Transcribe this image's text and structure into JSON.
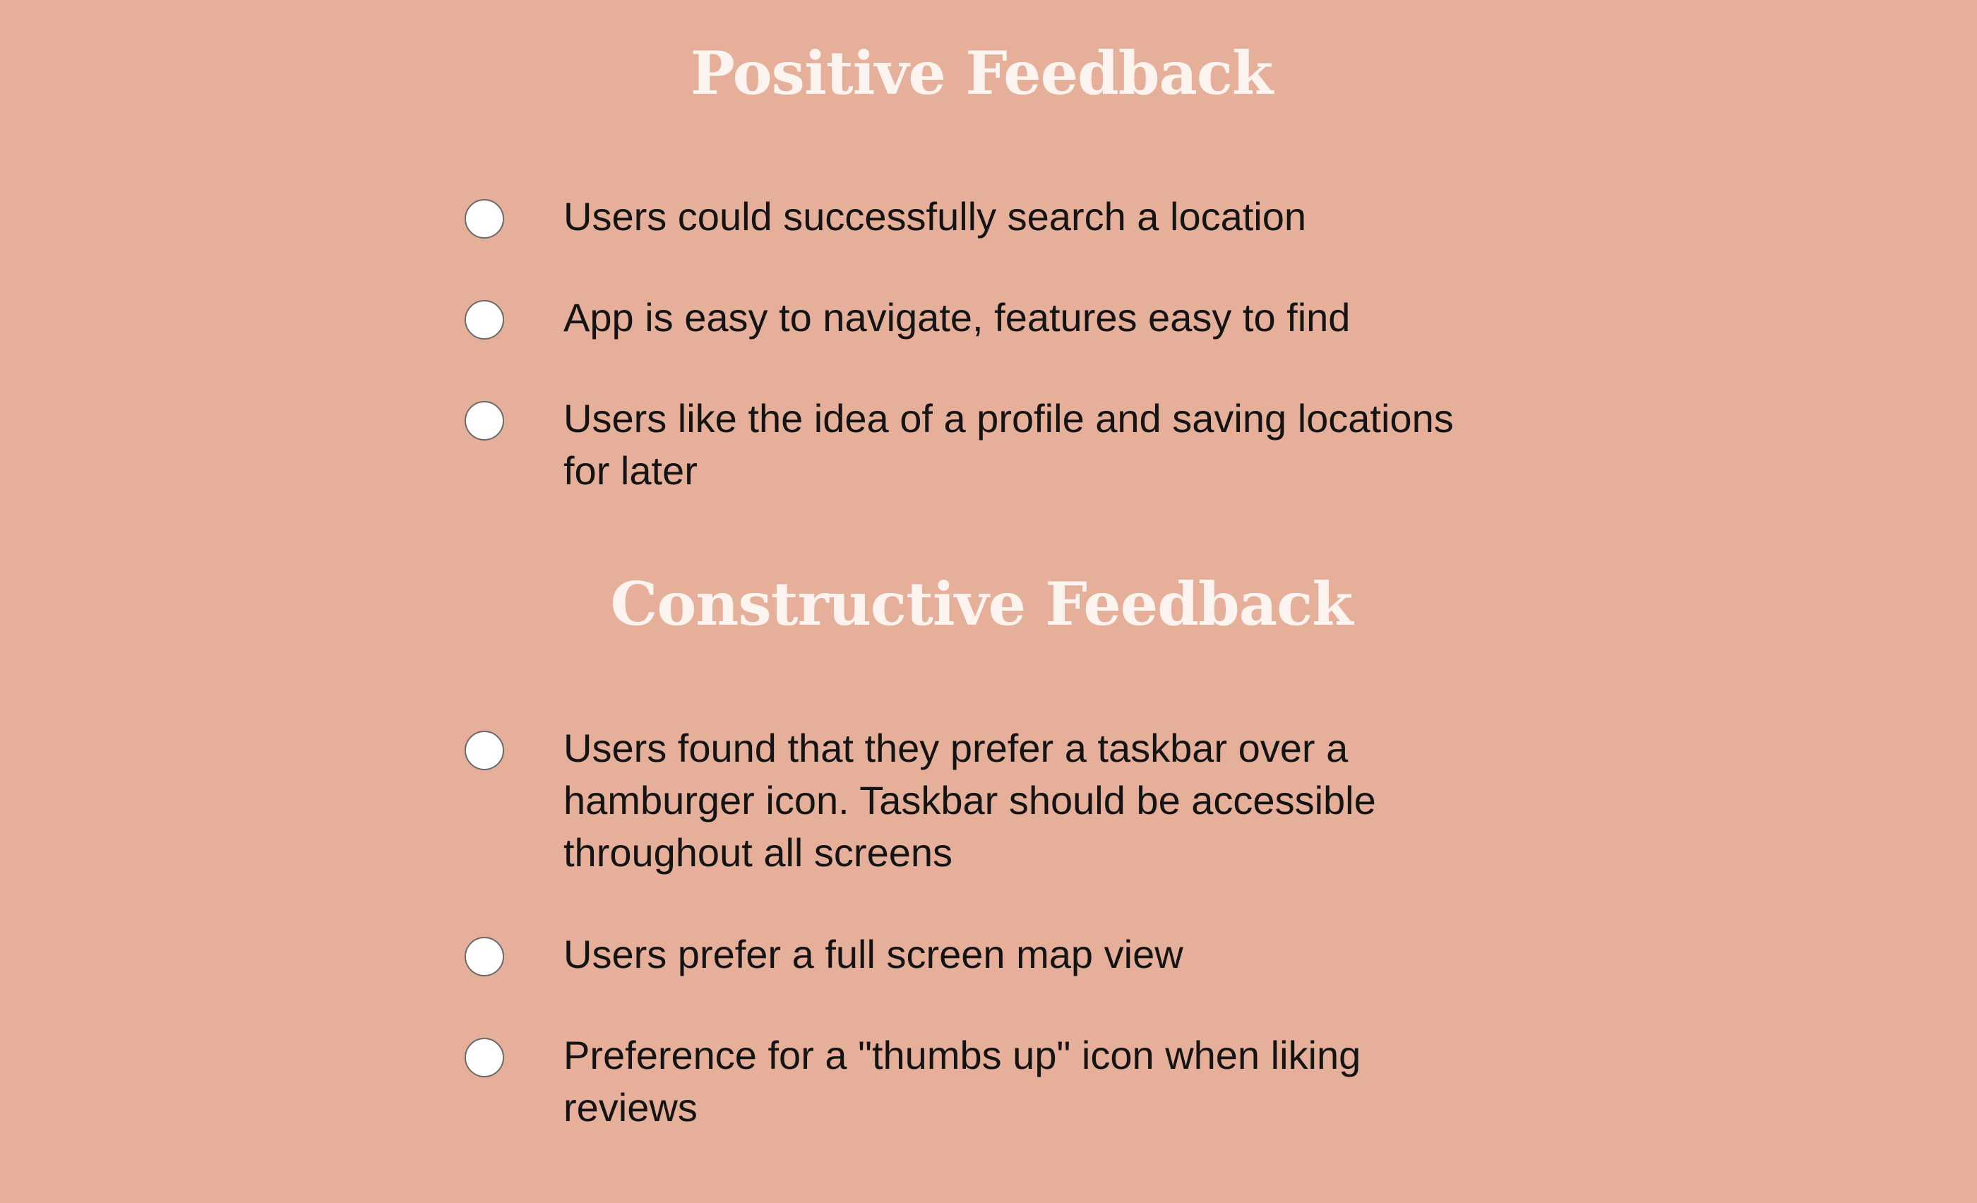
{
  "positive": {
    "title": "Positive Feedback",
    "items": [
      "Users could successfully search a location",
      "App is easy to navigate, features easy to find",
      "Users like the idea of a profile and saving locations for later"
    ]
  },
  "constructive": {
    "title": "Constructive Feedback",
    "items": [
      "Users found that they prefer a taskbar over a hamburger icon. Taskbar should be accessible throughout all screens",
      "Users prefer a full screen map view",
      "Preference for a \"thumbs up\" icon when liking reviews"
    ]
  },
  "colors": {
    "background": "#e5af9a",
    "heading": "#fdf4ef",
    "text": "#141414",
    "bullet": "#ffffff"
  }
}
